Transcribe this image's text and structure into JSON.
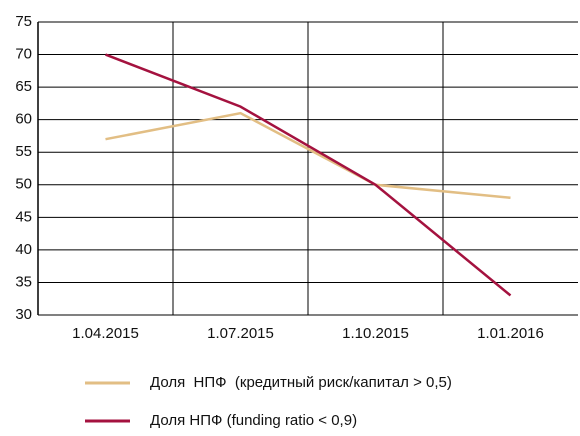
{
  "chart_data": {
    "type": "line",
    "categories": [
      "1.04.2015",
      "1.07.2015",
      "1.10.2015",
      "1.01.2016"
    ],
    "series": [
      {
        "name": "Доля  НПФ  (кредитный риск/капитал > 0,5)",
        "color": "#e2be84",
        "values": [
          57,
          61,
          50,
          48
        ]
      },
      {
        "name": "Доля НПФ (funding ratio < 0,9)",
        "color": "#a4123f",
        "values": [
          70,
          62,
          50,
          33
        ]
      }
    ],
    "ylim": [
      30,
      75
    ],
    "yticks": [
      30,
      35,
      40,
      45,
      50,
      55,
      60,
      65,
      70,
      75
    ],
    "grid": true,
    "legend": "bottom"
  }
}
